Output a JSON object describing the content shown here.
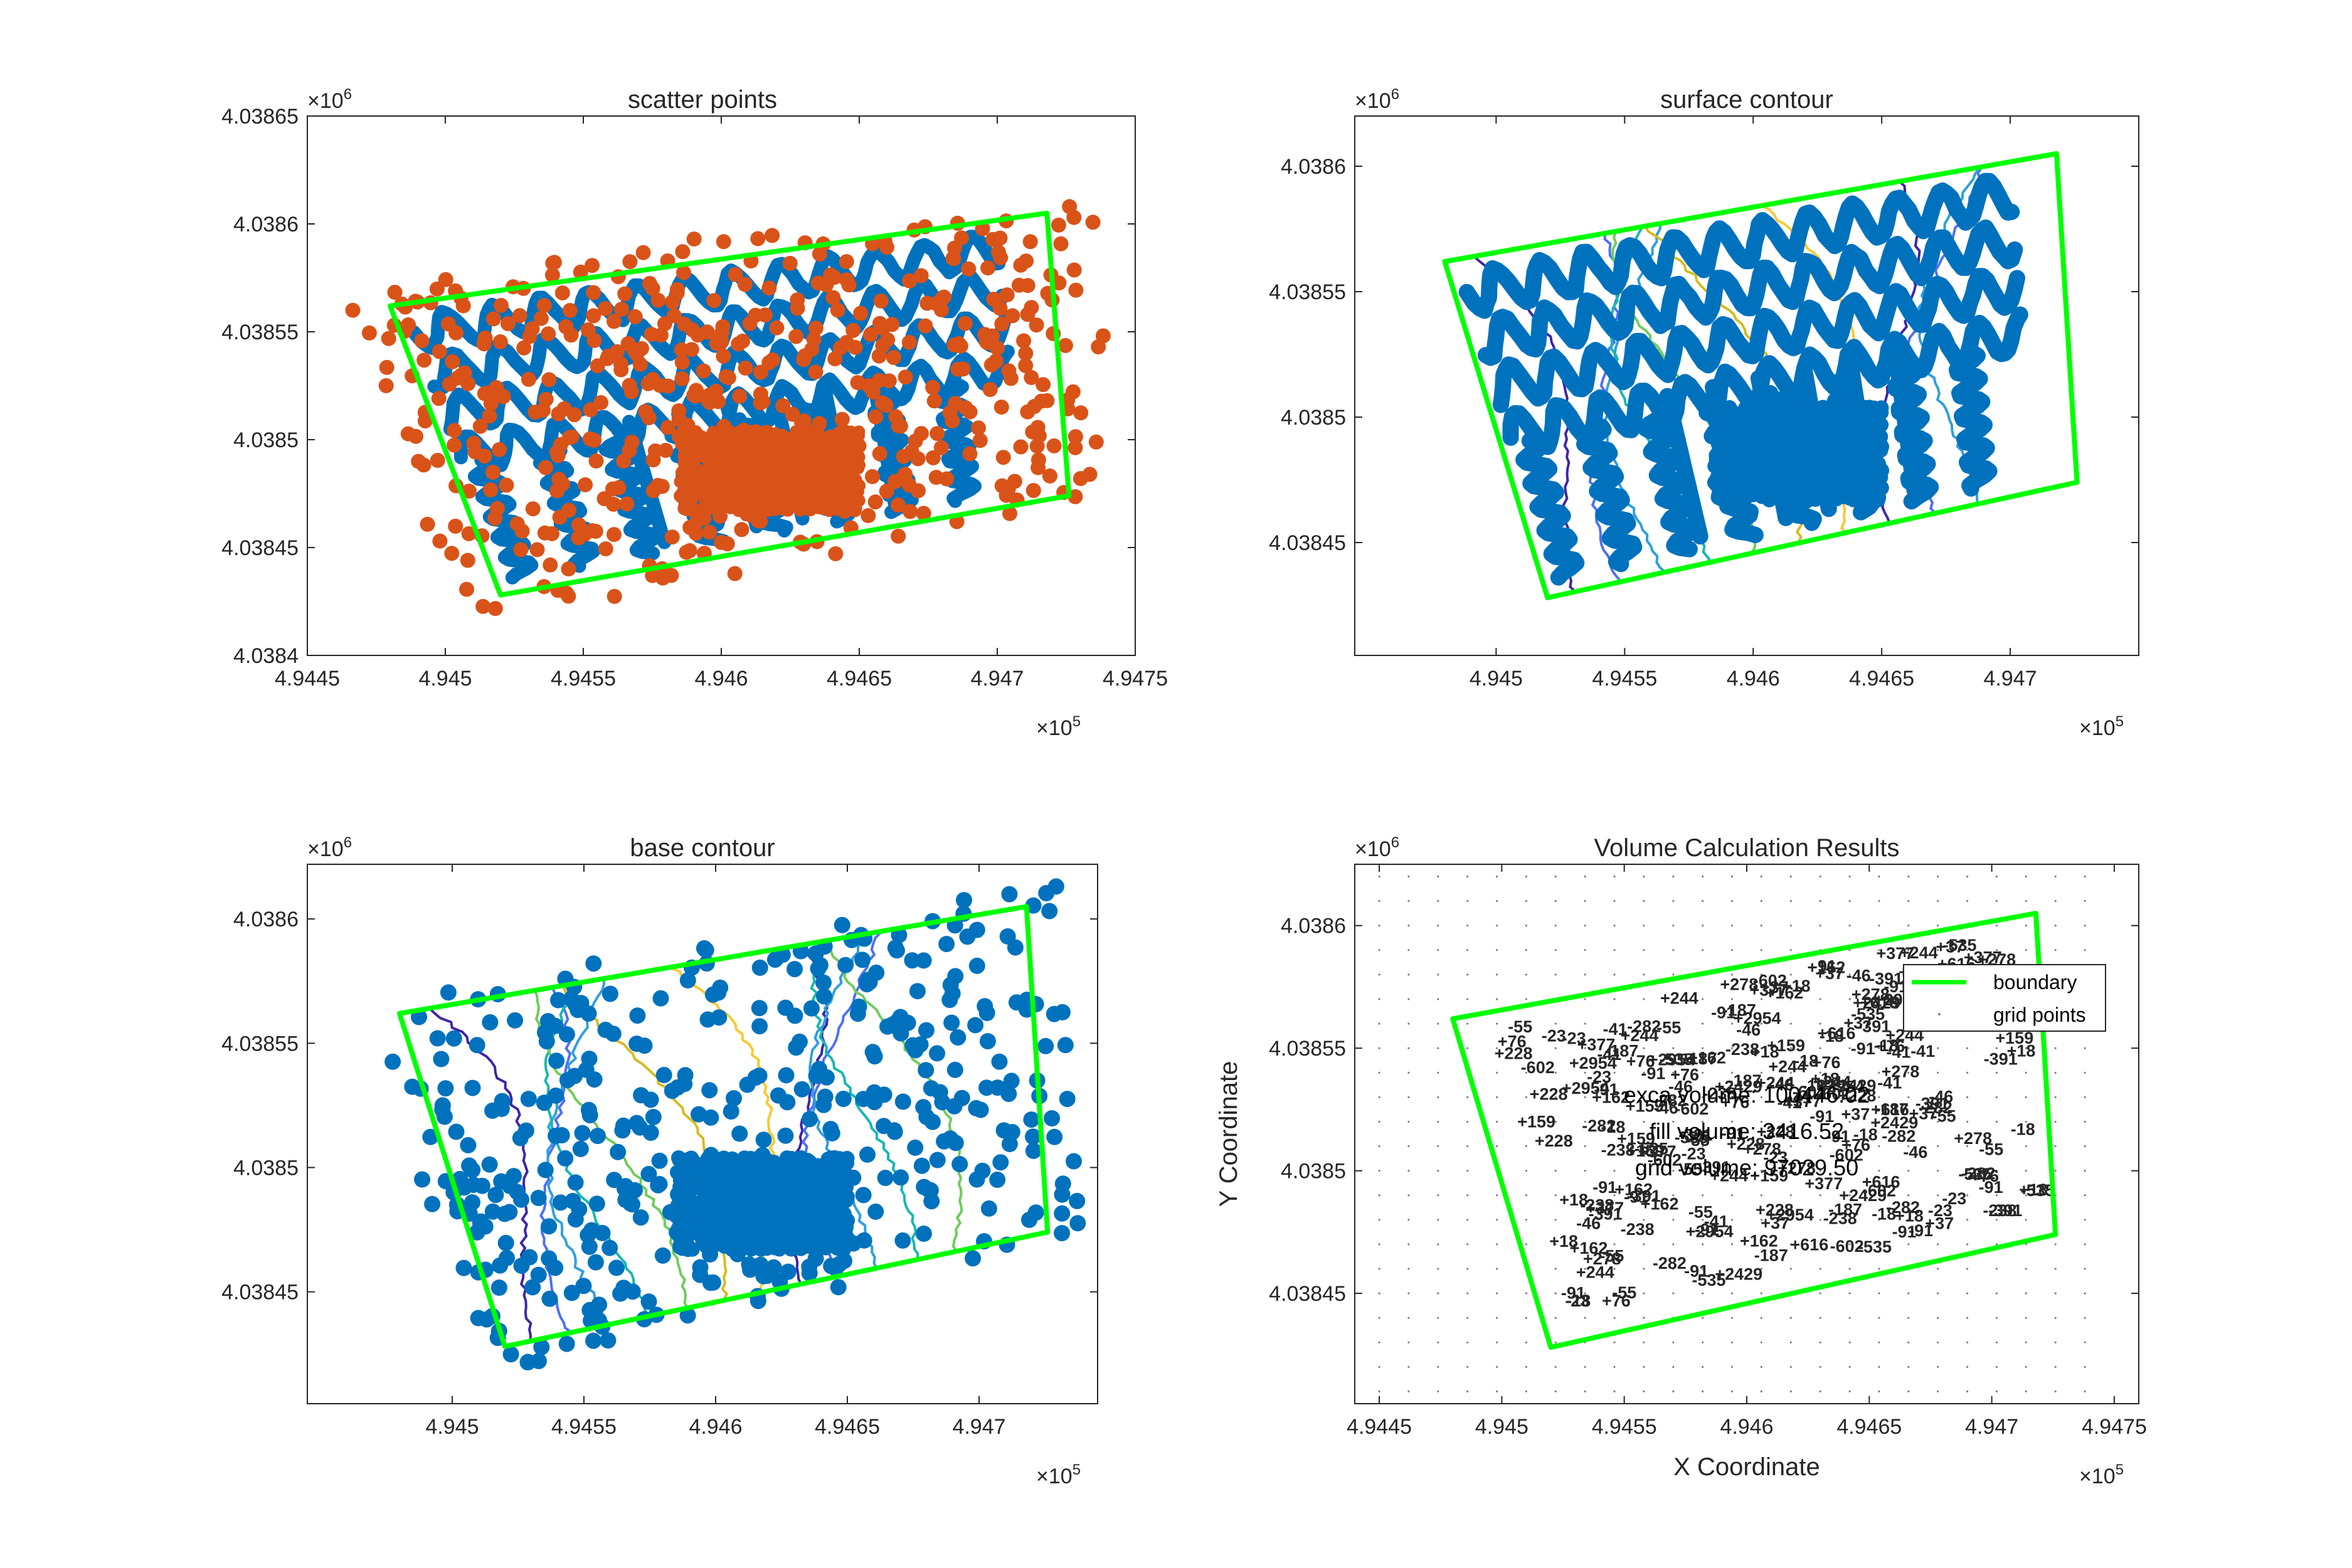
{
  "colors": {
    "boundary": "#00ff00",
    "scatter_blue": "#0072bd",
    "scatter_orange": "#d95319",
    "contour": [
      "#3e26a8",
      "#4d6ff8",
      "#2e9fe0",
      "#15b8b0",
      "#6dcd59",
      "#d5bb21",
      "#f8c932"
    ],
    "label_red": "#ff0000",
    "label_blue": "#0000ff",
    "axis": "#262626"
  },
  "chart_data": [
    {
      "type": "scatter",
      "title": "scatter points",
      "x_multiplier": "×10",
      "x_multiplier_exp": "5",
      "y_multiplier": "×10",
      "y_multiplier_exp": "6",
      "xlim": [
        494450,
        494750
      ],
      "ylim": [
        4038400,
        4038650
      ],
      "xticks": [
        494450,
        494500,
        494550,
        494600,
        494650,
        494700,
        494750
      ],
      "xtick_labels": [
        "4.9445",
        "4.945",
        "4.9455",
        "4.946",
        "4.9465",
        "4.947",
        "4.9475"
      ],
      "yticks": [
        4038400,
        4038450,
        4038500,
        4038550,
        4038600,
        4038650
      ],
      "ytick_labels": [
        "4.0384",
        "4.03845",
        "4.0385",
        "4.03855",
        "4.0386",
        "4.03865"
      ],
      "boundary": [
        [
          494480,
          4038562
        ],
        [
          494718,
          4038605
        ],
        [
          494726,
          4038474
        ],
        [
          494520,
          4038428
        ],
        [
          494480,
          4038562
        ]
      ],
      "series": [
        {
          "color": "#0072bd",
          "kind": "survey-tracks"
        },
        {
          "color": "#d95319",
          "kind": "random-points"
        }
      ]
    },
    {
      "type": "line",
      "title": "surface contour",
      "x_multiplier": "×10",
      "x_multiplier_exp": "5",
      "y_multiplier": "×10",
      "y_multiplier_exp": "6",
      "xlim": [
        494445,
        494750
      ],
      "ylim": [
        4038405,
        4038620
      ],
      "xticks": [
        494500,
        494550,
        494600,
        494650,
        494700
      ],
      "xtick_labels": [
        "4.945",
        "4.9455",
        "4.946",
        "4.9465",
        "4.947"
      ],
      "yticks": [
        4038450,
        4038500,
        4038550,
        4038600
      ],
      "ytick_labels": [
        "4.03845",
        "4.0385",
        "4.03855",
        "4.0386"
      ],
      "boundary": [
        [
          494480,
          4038562
        ],
        [
          494718,
          4038605
        ],
        [
          494726,
          4038474
        ],
        [
          494520,
          4038428
        ],
        [
          494480,
          4038562
        ]
      ],
      "series": [
        {
          "color": "#0072bd",
          "kind": "survey-tracks"
        }
      ]
    },
    {
      "type": "line",
      "title": "base contour",
      "x_multiplier": "×10",
      "x_multiplier_exp": "5",
      "y_multiplier": "×10",
      "y_multiplier_exp": "6",
      "xlim": [
        494445,
        494745
      ],
      "ylim": [
        4038405,
        4038622
      ],
      "xticks": [
        494500,
        494550,
        494600,
        494650,
        494700
      ],
      "xtick_labels": [
        "4.945",
        "4.9455",
        "4.946",
        "4.9465",
        "4.947"
      ],
      "yticks": [
        4038450,
        4038500,
        4038550,
        4038600
      ],
      "ytick_labels": [
        "4.03845",
        "4.0385",
        "4.03855",
        "4.0386"
      ],
      "boundary": [
        [
          494480,
          4038562
        ],
        [
          494718,
          4038605
        ],
        [
          494726,
          4038474
        ],
        [
          494520,
          4038428
        ],
        [
          494480,
          4038562
        ]
      ],
      "series": [
        {
          "color": "#0072bd",
          "kind": "random-points"
        }
      ]
    },
    {
      "type": "scatter",
      "title": "Volume Calculation Results",
      "xlabel": "X Coordinate",
      "ylabel": "Y Coordinate",
      "x_multiplier": "×10",
      "x_multiplier_exp": "5",
      "y_multiplier": "×10",
      "y_multiplier_exp": "6",
      "xlim": [
        494440,
        494760
      ],
      "ylim": [
        4038405,
        4038625
      ],
      "xticks": [
        494450,
        494500,
        494550,
        494600,
        494650,
        494700,
        494750
      ],
      "xtick_labels": [
        "4.9445",
        "4.945",
        "4.9455",
        "4.946",
        "4.9465",
        "4.947",
        "4.9475"
      ],
      "yticks": [
        4038450,
        4038500,
        4038550,
        4038600
      ],
      "ytick_labels": [
        "4.03845",
        "4.0385",
        "4.03855",
        "4.0386"
      ],
      "boundary": [
        [
          494480,
          4038562
        ],
        [
          494718,
          4038605
        ],
        [
          494726,
          4038474
        ],
        [
          494520,
          4038428
        ],
        [
          494480,
          4038562
        ]
      ],
      "legend": {
        "position": "top-right",
        "entries": [
          {
            "label": "boundary",
            "color": "#00ff00"
          },
          {
            "label": "grid points",
            "color": "#808080"
          }
        ]
      },
      "annotations": [
        {
          "text": "exca volume: 100446.02",
          "x": 494597,
          "y": 4038525
        },
        {
          "text": "fill volume: 3416.52",
          "x": 494597,
          "y": 4038512
        },
        {
          "text": "grid volume: 97029.50",
          "x": 494597,
          "y": 4038498
        }
      ],
      "grid_labels_sample": [
        {
          "text": "-91",
          "color": "#0000ff"
        },
        {
          "text": "+76",
          "color": "#ff0000"
        },
        {
          "text": "+244",
          "color": "#ff0000"
        },
        {
          "text": "+159",
          "color": "#ff0000"
        },
        {
          "text": "-282",
          "color": "#0000ff"
        },
        {
          "text": "-187",
          "color": "#0000ff"
        },
        {
          "text": "-55",
          "color": "#0000ff"
        },
        {
          "text": "-602",
          "color": "#0000ff"
        },
        {
          "text": "-535",
          "color": "#0000ff"
        },
        {
          "text": "-391",
          "color": "#0000ff"
        },
        {
          "text": "-238",
          "color": "#0000ff"
        },
        {
          "text": "-41",
          "color": "#0000ff"
        },
        {
          "text": "-91",
          "color": "#0000ff"
        },
        {
          "text": "-23",
          "color": "#0000ff"
        },
        {
          "text": "-18",
          "color": "#0000ff"
        },
        {
          "text": "-46",
          "color": "#0000ff"
        },
        {
          "text": "+278",
          "color": "#ff0000"
        },
        {
          "text": "+2429",
          "color": "#ff0000"
        },
        {
          "text": "+228",
          "color": "#ff0000"
        },
        {
          "text": "+377",
          "color": "#ff0000"
        },
        {
          "text": "+2954",
          "color": "#ff0000"
        },
        {
          "text": "+18",
          "color": "#ff0000"
        },
        {
          "text": "+616",
          "color": "#ff0000"
        },
        {
          "text": "+162",
          "color": "#ff0000"
        },
        {
          "text": "+37",
          "color": "#ff0000"
        }
      ]
    }
  ]
}
